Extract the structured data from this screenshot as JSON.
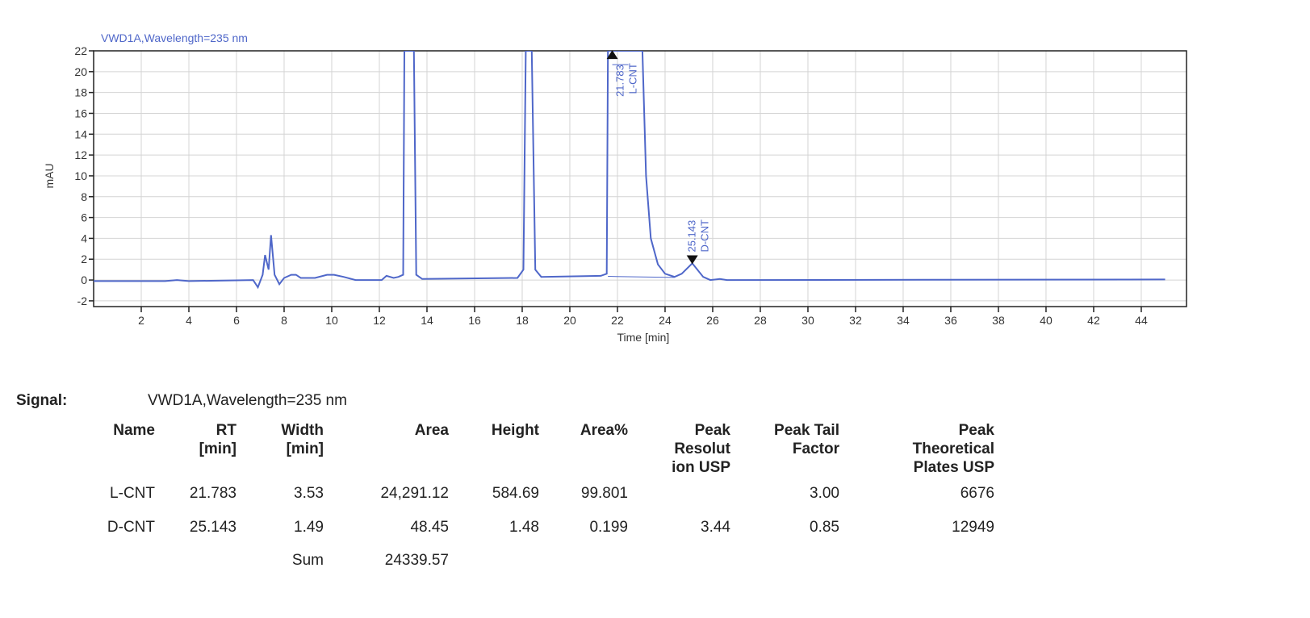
{
  "chart_data": {
    "type": "line",
    "title": "VWD1A,Wavelength=235 nm",
    "xlabel": "Time [min]",
    "ylabel": "mAU",
    "xlim": [
      0,
      45.9
    ],
    "ylim": [
      -2.55,
      22
    ],
    "xticks": [
      2,
      4,
      6,
      8,
      10,
      12,
      14,
      16,
      18,
      20,
      22,
      24,
      26,
      28,
      30,
      32,
      34,
      36,
      38,
      40,
      42,
      44
    ],
    "yticks": [
      -2,
      0,
      2,
      4,
      6,
      8,
      10,
      12,
      14,
      16,
      18,
      20,
      22
    ],
    "grid": true,
    "line_color": "#4f67c9",
    "series": [
      {
        "x": [
          0,
          3,
          3.5,
          4,
          6.7,
          6.9,
          7.1,
          7.2,
          7.35,
          7.45,
          7.6,
          7.8,
          8.0,
          8.3,
          8.5,
          8.7,
          9.3,
          9.8,
          10.1,
          10.5,
          11,
          12.1,
          12.3,
          12.6,
          12.8,
          13.0,
          13.05,
          13.45,
          13.55,
          13.8,
          17.8,
          18.05,
          18.15,
          18.4,
          18.55,
          18.8,
          21.3,
          21.55,
          21.6,
          23.05,
          23.2,
          23.4,
          23.7,
          24.0,
          24.4,
          24.7,
          25.143,
          25.6,
          25.9,
          26.3,
          26.6,
          45
        ],
        "y": [
          -0.1,
          -0.1,
          0,
          -0.1,
          0,
          -0.7,
          0.5,
          2.4,
          1.0,
          4.3,
          0.5,
          -0.4,
          0.2,
          0.5,
          0.5,
          0.2,
          0.2,
          0.5,
          0.5,
          0.3,
          0,
          0,
          0.4,
          0.2,
          0.3,
          0.5,
          22,
          22,
          0.5,
          0.1,
          0.2,
          1.0,
          22,
          22,
          1.0,
          0.3,
          0.4,
          0.6,
          22,
          22,
          10,
          4,
          1.5,
          0.6,
          0.3,
          0.6,
          1.6,
          0.3,
          0,
          0.1,
          0,
          0.05
        ]
      }
    ],
    "peak_baseline": {
      "x": [
        21.6,
        24.4
      ],
      "y": [
        0.35,
        0.25
      ]
    },
    "annotations": [
      {
        "rt": 21.783,
        "label_rt": "21.783",
        "name": "L-CNT",
        "marker": "up-triangle",
        "y": 21.6
      },
      {
        "rt": 25.143,
        "label_rt": "25.143",
        "name": "D-CNT",
        "marker": "down-triangle",
        "y": 1.9
      }
    ]
  },
  "table": {
    "signal_label": "Signal:",
    "signal_value": "VWD1A,Wavelength=235 nm",
    "headers": [
      "Name",
      "RT\n[min]",
      "Width\n[min]",
      "Area",
      "Height",
      "Area%",
      "Peak\nResolut\nion USP",
      "Peak Tail\nFactor",
      "Peak\nTheoretical\nPlates USP"
    ],
    "rows": [
      [
        "L-CNT",
        "21.783",
        "3.53",
        "24,291.12",
        "584.69",
        "99.801",
        "",
        "3.00",
        "6676"
      ],
      [
        "D-CNT",
        "25.143",
        "1.49",
        "48.45",
        "1.48",
        "0.199",
        "3.44",
        "0.85",
        "12949"
      ]
    ],
    "sum_label": "Sum",
    "sum_value": "24339.57"
  }
}
